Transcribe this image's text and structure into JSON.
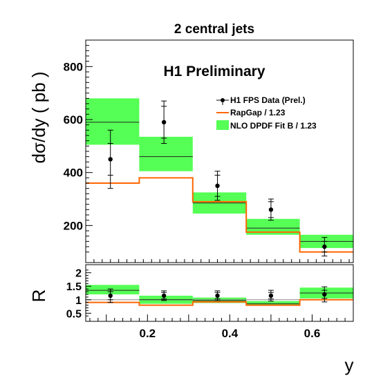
{
  "chart_data": [
    {
      "type": "bar",
      "title": "2 central jets",
      "annotation": "H1 Preliminary",
      "xlabel": "y",
      "ylabel": "dσ/dy ( pb )",
      "xlim": [
        0.05,
        0.7
      ],
      "ylim": [
        60,
        900
      ],
      "yticks": [
        "200",
        "400",
        "600",
        "800"
      ],
      "bins": [
        [
          0.05,
          0.18
        ],
        [
          0.18,
          0.31
        ],
        [
          0.31,
          0.44
        ],
        [
          0.44,
          0.57
        ],
        [
          0.57,
          0.7
        ]
      ],
      "legend": {
        "position": "top-right",
        "entries": [
          "H1 FPS Data (Prel.)",
          "RapGap / 1.23",
          "NLO DPDF Fit B / 1.23"
        ]
      },
      "series": [
        {
          "name": "H1 FPS Data (Prel.)",
          "kind": "points",
          "x": [
            0.11,
            0.24,
            0.37,
            0.5,
            0.63
          ],
          "y": [
            450,
            590,
            350,
            260,
            120
          ],
          "err_inner": [
            60,
            60,
            40,
            30,
            20
          ],
          "err_total": [
            110,
            80,
            55,
            40,
            35
          ],
          "color": "#000000"
        },
        {
          "name": "RapGap / 1.23",
          "kind": "step",
          "values": [
            360,
            380,
            290,
            175,
            100
          ],
          "color": "#ff6600"
        },
        {
          "name": "NLO DPDF Fit B / 1.23",
          "kind": "band",
          "central": [
            590,
            460,
            285,
            190,
            140
          ],
          "low": [
            505,
            405,
            245,
            165,
            115
          ],
          "high": [
            680,
            535,
            325,
            225,
            165
          ],
          "color": "#55ff55"
        }
      ]
    },
    {
      "type": "bar",
      "xlabel": "y",
      "ylabel": "R",
      "xlim": [
        0.05,
        0.7
      ],
      "ylim": [
        0.2,
        2.3
      ],
      "yticks": [
        "0.5",
        "1",
        "1.5",
        "2"
      ],
      "xticks": [
        "0.2",
        "0.4",
        "0.6"
      ],
      "bins": [
        [
          0.05,
          0.18
        ],
        [
          0.18,
          0.31
        ],
        [
          0.31,
          0.44
        ],
        [
          0.44,
          0.57
        ],
        [
          0.57,
          0.7
        ]
      ],
      "series": [
        {
          "name": "",
          "kind": "points",
          "x": [
            0.11,
            0.24,
            0.37,
            0.5,
            0.63
          ],
          "y": [
            1.15,
            1.15,
            1.15,
            1.15,
            1.2
          ],
          "err_inner": [
            0.15,
            0.12,
            0.12,
            0.12,
            0.15
          ],
          "err_total": [
            0.25,
            0.18,
            0.18,
            0.2,
            0.28
          ],
          "color": "#000000"
        },
        {
          "name": "",
          "kind": "step",
          "values": [
            0.9,
            0.8,
            0.92,
            0.8,
            1.0
          ],
          "color": "#ff6600"
        },
        {
          "name": "",
          "kind": "band",
          "central": [
            1.35,
            1.0,
            0.97,
            0.85,
            1.25
          ],
          "low": [
            1.2,
            0.85,
            0.88,
            0.78,
            1.05
          ],
          "high": [
            1.55,
            1.15,
            1.08,
            0.95,
            1.45
          ],
          "color": "#55ff55"
        }
      ],
      "reference_line": 1
    }
  ]
}
